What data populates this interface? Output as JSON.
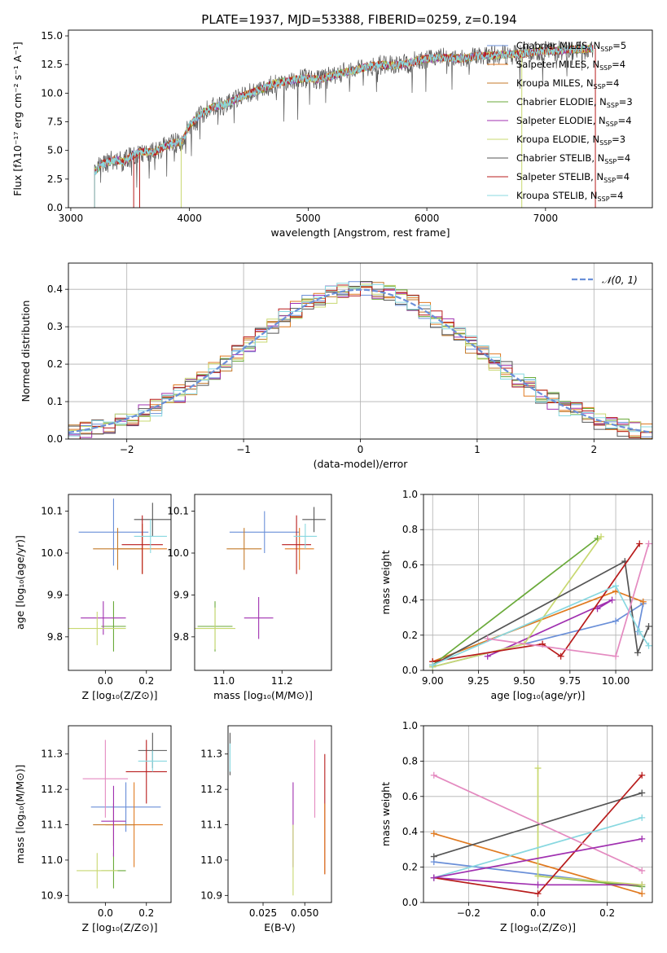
{
  "figure_title": "PLATE=1937, MJD=53388, FIBERID=0259, z=0.194",
  "model_colors": [
    "#6a8fd8",
    "#e07a20",
    "#c47a2a",
    "#6aaa3a",
    "#a030b0",
    "#c8d870",
    "#555555",
    "#b81c1c",
    "#88d8e0"
  ],
  "chart_data": [
    {
      "id": "spectrum",
      "type": "line",
      "title": "PLATE=1937, MJD=53388, FIBERID=0259, z=0.194",
      "xlabel": "wavelength [Angstrom, rest frame]",
      "ylabel": "Flux [fλ10⁻¹⁷ erg cm⁻² s⁻¹ A⁻¹]",
      "xlim": [
        2980,
        7900
      ],
      "ylim": [
        0,
        15.5
      ],
      "xticks": [
        3000,
        4000,
        5000,
        6000,
        7000
      ],
      "yticks": [
        0.0,
        2.5,
        5.0,
        7.5,
        10.0,
        12.5,
        15.0
      ],
      "grid": false,
      "legend_position": "upper-right",
      "data_x": [
        3200,
        3260,
        3320,
        3380,
        3440,
        3500,
        3560,
        3620,
        3700,
        3780,
        3860,
        3940,
        4000,
        4100,
        4200,
        4300,
        4400,
        4500,
        4600,
        4700,
        4800,
        4900,
        5000,
        5100,
        5200,
        5300,
        5400,
        5500,
        5600,
        5700,
        5800,
        5900,
        6000,
        6100,
        6200,
        6300,
        6400,
        6500,
        6600,
        6700,
        6800,
        6900,
        7000,
        7100,
        7200,
        7300,
        7400
      ],
      "data_y": [
        3.1,
        3.8,
        4.0,
        4.2,
        4.0,
        4.4,
        4.8,
        4.9,
        4.8,
        5.3,
        5.6,
        5.8,
        7.2,
        8.2,
        8.8,
        9.0,
        9.5,
        10.0,
        10.3,
        10.8,
        11.0,
        11.2,
        11.3,
        11.2,
        11.5,
        11.8,
        12.0,
        12.3,
        12.5,
        12.4,
        12.5,
        12.8,
        13.0,
        13.1,
        13.1,
        13.0,
        13.2,
        13.3,
        13.3,
        13.4,
        13.4,
        13.6,
        13.7,
        13.7,
        13.8,
        13.8,
        13.9
      ],
      "series": [
        {
          "label": "Chabrier MILES, N",
          "sub": "SSP",
          "suffix": "=5",
          "color": "#6a8fd8"
        },
        {
          "label": "Salpeter MILES, N",
          "sub": "SSP",
          "suffix": "=4",
          "color": "#e07a20"
        },
        {
          "label": "Kroupa MILES, N",
          "sub": "SSP",
          "suffix": "=4",
          "color": "#c47a2a"
        },
        {
          "label": "Chabrier ELODIE, N",
          "sub": "SSP",
          "suffix": "=3",
          "color": "#6aaa3a"
        },
        {
          "label": "Salpeter ELODIE, N",
          "sub": "SSP",
          "suffix": "=4",
          "color": "#a030b0"
        },
        {
          "label": "Kroupa ELODIE, N",
          "sub": "SSP",
          "suffix": "=3",
          "color": "#c8d870"
        },
        {
          "label": "Chabrier STELIB, N",
          "sub": "SSP",
          "suffix": "=4",
          "color": "#555555"
        },
        {
          "label": "Salpeter STELIB, N",
          "sub": "SSP",
          "suffix": "=4",
          "color": "#b81c1c"
        },
        {
          "label": "Kroupa STELIB, N",
          "sub": "SSP",
          "suffix": "=4",
          "color": "#88d8e0"
        }
      ]
    },
    {
      "id": "residuals",
      "type": "line",
      "xlabel": "(data-model)/error",
      "ylabel": "Normed distribution",
      "xlim": [
        -2.5,
        2.5
      ],
      "ylim": [
        0,
        0.47
      ],
      "xticks": [
        -2,
        -1,
        0,
        1,
        2
      ],
      "yticks": [
        0.0,
        0.1,
        0.2,
        0.3,
        0.4
      ],
      "grid": true,
      "legend_position": "upper-right",
      "legend": "𝒩(0, 1)",
      "gaussian_color": "#6a8fd8",
      "bin_edges": [
        -2.5,
        -2.4,
        -2.3,
        -2.2,
        -2.1,
        -2.0,
        -1.9,
        -1.8,
        -1.7,
        -1.6,
        -1.5,
        -1.4,
        -1.3,
        -1.2,
        -1.1,
        -1.0,
        -0.9,
        -0.8,
        -0.7,
        -0.6,
        -0.5,
        -0.4,
        -0.3,
        -0.2,
        -0.1,
        0.0,
        0.1,
        0.2,
        0.3,
        0.4,
        0.5,
        0.6,
        0.7,
        0.8,
        0.9,
        1.0,
        1.1,
        1.2,
        1.3,
        1.4,
        1.5,
        1.6,
        1.7,
        1.8,
        1.9,
        2.0,
        2.1,
        2.2,
        2.3,
        2.4,
        2.5
      ]
    },
    {
      "id": "age_vs_Z",
      "type": "scatter",
      "xlabel": "Z [log₁₀(Z/Z⊙)]",
      "ylabel": "age  [log₁₀(age/yr)]",
      "xlim": [
        -0.18,
        0.32
      ],
      "ylim": [
        9.72,
        10.14
      ],
      "xticks": [
        0.0,
        0.2
      ],
      "yticks": [
        9.8,
        9.9,
        10.0,
        10.1
      ],
      "points": [
        {
          "x": 0.04,
          "y": 10.05,
          "xerr": 0.17,
          "yerr": 0.08,
          "color": "#6a8fd8"
        },
        {
          "x": 0.18,
          "y": 10.01,
          "xerr": 0.12,
          "yerr": 0.06,
          "color": "#e07a20"
        },
        {
          "x": 0.06,
          "y": 10.01,
          "xerr": 0.12,
          "yerr": 0.05,
          "color": "#c47a2a"
        },
        {
          "x": 0.04,
          "y": 9.825,
          "xerr": 0.06,
          "yerr": 0.06,
          "color": "#6aaa3a"
        },
        {
          "x": -0.01,
          "y": 9.845,
          "xerr": 0.11,
          "yerr": 0.04,
          "color": "#a030b0"
        },
        {
          "x": -0.04,
          "y": 9.82,
          "xerr": 0.14,
          "yerr": 0.04,
          "color": "#c8d870"
        },
        {
          "x": 0.23,
          "y": 10.08,
          "xerr": 0.09,
          "yerr": 0.04,
          "color": "#555555"
        },
        {
          "x": 0.18,
          "y": 10.02,
          "xerr": 0.1,
          "yerr": 0.07,
          "color": "#b81c1c"
        },
        {
          "x": 0.22,
          "y": 10.04,
          "xerr": 0.08,
          "yerr": 0.04,
          "color": "#88d8e0"
        }
      ]
    },
    {
      "id": "age_vs_mass",
      "type": "scatter",
      "xlabel": "mass [log₁₀(M/M⊙)]",
      "ylabel": "",
      "xlim": [
        10.9,
        11.37
      ],
      "ylim": [
        9.72,
        10.14
      ],
      "xticks": [
        11.0,
        11.2
      ],
      "yticks": [
        9.8,
        9.9,
        10.0,
        10.1
      ],
      "points": [
        {
          "x": 11.14,
          "y": 10.05,
          "xerr": 0.12,
          "yerr": 0.05,
          "color": "#6a8fd8"
        },
        {
          "x": 11.26,
          "y": 10.01,
          "xerr": 0.05,
          "yerr": 0.05,
          "color": "#e07a20"
        },
        {
          "x": 11.07,
          "y": 10.01,
          "xerr": 0.06,
          "yerr": 0.05,
          "color": "#c47a2a"
        },
        {
          "x": 10.97,
          "y": 9.825,
          "xerr": 0.06,
          "yerr": 0.06,
          "color": "#6aaa3a"
        },
        {
          "x": 11.12,
          "y": 9.845,
          "xerr": 0.05,
          "yerr": 0.05,
          "color": "#a030b0"
        },
        {
          "x": 10.97,
          "y": 9.82,
          "xerr": 0.07,
          "yerr": 0.05,
          "color": "#c8d870"
        },
        {
          "x": 11.31,
          "y": 10.08,
          "xerr": 0.04,
          "yerr": 0.03,
          "color": "#555555"
        },
        {
          "x": 11.25,
          "y": 10.02,
          "xerr": 0.05,
          "yerr": 0.07,
          "color": "#b81c1c"
        },
        {
          "x": 11.28,
          "y": 10.04,
          "xerr": 0.04,
          "yerr": 0.03,
          "color": "#88d8e0"
        }
      ]
    },
    {
      "id": "weight_vs_age",
      "type": "line",
      "xlabel": "age  [log₁₀(age/yr)]",
      "ylabel": "mass weight",
      "xlim": [
        8.95,
        10.2
      ],
      "ylim": [
        0,
        1.0
      ],
      "xticks": [
        9.0,
        9.25,
        9.5,
        9.75,
        10.0
      ],
      "yticks": [
        0.0,
        0.2,
        0.4,
        0.6,
        0.8,
        1.0
      ],
      "grid": true,
      "series": [
        {
          "color": "#6a8fd8",
          "x": [
            9.0,
            10.0,
            10.15,
            10.12
          ],
          "y": [
            0.02,
            0.28,
            0.38,
            0.22
          ]
        },
        {
          "color": "#e07a20",
          "x": [
            9.0,
            10.0,
            10.15
          ],
          "y": [
            0.05,
            0.45,
            0.39
          ]
        },
        {
          "color": "#6aaa3a",
          "x": [
            9.0,
            9.9
          ],
          "y": [
            0.03,
            0.75
          ]
        },
        {
          "color": "#a030b0",
          "x": [
            9.3,
            9.98,
            9.9
          ],
          "y": [
            0.08,
            0.4,
            0.35
          ]
        },
        {
          "color": "#c8d870",
          "x": [
            9.0,
            9.5,
            9.92
          ],
          "y": [
            0.02,
            0.15,
            0.76
          ]
        },
        {
          "color": "#555555",
          "x": [
            9.0,
            10.05,
            10.12,
            10.18
          ],
          "y": [
            0.03,
            0.62,
            0.1,
            0.25
          ]
        },
        {
          "color": "#b81c1c",
          "x": [
            9.0,
            9.6,
            9.7,
            10.13
          ],
          "y": [
            0.05,
            0.15,
            0.08,
            0.72
          ]
        },
        {
          "color": "#88d8e0",
          "x": [
            9.0,
            10.0,
            10.13,
            10.18
          ],
          "y": [
            0.03,
            0.48,
            0.22,
            0.14
          ]
        },
        {
          "color": "#e48ac0",
          "x": [
            9.3,
            10.0,
            10.18
          ],
          "y": [
            0.18,
            0.08,
            0.72
          ]
        }
      ]
    },
    {
      "id": "mass_vs_Z",
      "type": "scatter",
      "xlabel": "Z [log₁₀(Z/Z⊙)]",
      "ylabel": "mass [log₁₀(M/M⊙)]",
      "xlim": [
        -0.18,
        0.32
      ],
      "ylim": [
        10.88,
        11.38
      ],
      "xticks": [
        0.0,
        0.2
      ],
      "yticks": [
        10.9,
        11.0,
        11.1,
        11.2,
        11.3
      ],
      "points": [
        {
          "x": 0.1,
          "y": 11.15,
          "xerr": 0.17,
          "yerr": 0.07,
          "color": "#6a8fd8"
        },
        {
          "x": 0.14,
          "y": 11.1,
          "xerr": 0.14,
          "yerr": 0.12,
          "color": "#e07a20"
        },
        {
          "x": 0.04,
          "y": 11.1,
          "xerr": 0.1,
          "yerr": 0.06,
          "color": "#c47a2a"
        },
        {
          "x": 0.04,
          "y": 10.97,
          "xerr": 0.06,
          "yerr": 0.05,
          "color": "#6aaa3a"
        },
        {
          "x": 0.04,
          "y": 11.11,
          "xerr": 0.06,
          "yerr": 0.1,
          "color": "#a030b0"
        },
        {
          "x": -0.04,
          "y": 10.97,
          "xerr": 0.1,
          "yerr": 0.05,
          "color": "#c8d870"
        },
        {
          "x": 0.23,
          "y": 11.31,
          "xerr": 0.07,
          "yerr": 0.05,
          "color": "#555555"
        },
        {
          "x": 0.2,
          "y": 11.25,
          "xerr": 0.1,
          "yerr": 0.09,
          "color": "#b81c1c"
        },
        {
          "x": 0.23,
          "y": 11.28,
          "xerr": 0.07,
          "yerr": 0.03,
          "color": "#88d8e0"
        },
        {
          "x": 0.0,
          "y": 11.23,
          "xerr": 0.11,
          "yerr": 0.11,
          "color": "#e48ac0"
        }
      ]
    },
    {
      "id": "mass_vs_ebv",
      "type": "scatter",
      "xlabel": "E(B-V)",
      "ylabel": "",
      "xlim": [
        0.004,
        0.066
      ],
      "ylim": [
        10.88,
        11.38
      ],
      "xticks": [
        0.025,
        0.05
      ],
      "yticks": [
        10.9,
        11.0,
        11.1,
        11.2,
        11.3
      ],
      "points": [
        {
          "x": 0.0052,
          "y": 11.3,
          "yerr": 0.06,
          "color": "#555555"
        },
        {
          "x": 0.0052,
          "y": 11.29,
          "yerr": 0.04,
          "color": "#88d8e0"
        },
        {
          "x": 0.043,
          "y": 11.1,
          "yerr": 0.12,
          "color": "#a030b0"
        },
        {
          "x": 0.043,
          "y": 11.0,
          "yerr": 0.1,
          "color": "#c8d870"
        },
        {
          "x": 0.056,
          "y": 11.23,
          "yerr": 0.11,
          "color": "#e48ac0"
        },
        {
          "x": 0.062,
          "y": 11.13,
          "yerr": 0.17,
          "color": "#b81c1c"
        },
        {
          "x": 0.062,
          "y": 11.06,
          "yerr": 0.1,
          "color": "#e07a20"
        }
      ]
    },
    {
      "id": "weight_vs_Z",
      "type": "line",
      "xlabel": "Z [log₁₀(Z/Z⊙)]",
      "ylabel": "mass weight",
      "xlim": [
        -0.33,
        0.33
      ],
      "ylim": [
        0,
        1.0
      ],
      "xticks": [
        -0.2,
        0.0,
        0.2
      ],
      "yticks": [
        0.0,
        0.2,
        0.4,
        0.6,
        0.8,
        1.0
      ],
      "grid": true,
      "series": [
        {
          "color": "#6a8fd8",
          "x": [
            -0.3,
            0.3
          ],
          "y": [
            0.23,
            0.09
          ]
        },
        {
          "color": "#e07a20",
          "x": [
            -0.3,
            0.3
          ],
          "y": [
            0.39,
            0.05
          ]
        },
        {
          "color": "#6aaa3a",
          "x": [
            0.0,
            0.3
          ],
          "y": [
            0.15,
            0.09
          ]
        },
        {
          "color": "#a030b0",
          "x": [
            -0.3,
            0.0,
            0.3
          ],
          "y": [
            0.14,
            0.1,
            0.1
          ]
        },
        {
          "color": "#c8d870",
          "x": [
            0.0,
            0.0,
            0.3
          ],
          "y": [
            0.76,
            0.15,
            0.1
          ]
        },
        {
          "color": "#555555",
          "x": [
            -0.3,
            0.3
          ],
          "y": [
            0.26,
            0.62
          ]
        },
        {
          "color": "#b81c1c",
          "x": [
            -0.3,
            0.0,
            0.3
          ],
          "y": [
            0.14,
            0.05,
            0.72
          ]
        },
        {
          "color": "#88d8e0",
          "x": [
            -0.3,
            0.3
          ],
          "y": [
            0.14,
            0.48
          ]
        },
        {
          "color": "#e48ac0",
          "x": [
            -0.3,
            0.3
          ],
          "y": [
            0.72,
            0.18
          ]
        },
        {
          "color": "#a030b0",
          "x": [
            -0.3,
            0.3
          ],
          "y": [
            0.14,
            0.36
          ]
        }
      ]
    }
  ]
}
